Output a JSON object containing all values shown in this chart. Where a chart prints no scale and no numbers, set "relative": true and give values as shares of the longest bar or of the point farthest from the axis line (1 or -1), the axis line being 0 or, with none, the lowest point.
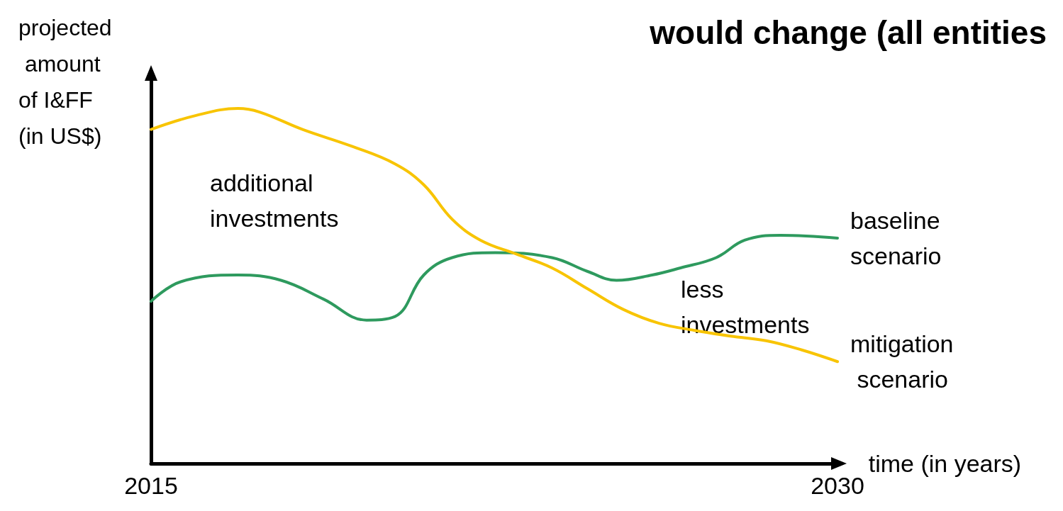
{
  "chart_data": {
    "type": "line",
    "title": "would change (all entities",
    "ylabel": "projected amount of I&FF (in US$)",
    "xlabel": "time (in years)",
    "relative": true,
    "xlim": [
      2015,
      2030
    ],
    "xticks": [
      2015,
      2030
    ],
    "grid": false,
    "legend": false,
    "marker": "none",
    "line_style": "solid",
    "annotations": [
      "additional investments",
      "less investments"
    ],
    "series": [
      {
        "name": "baseline scenario",
        "color": "#2e9a5e",
        "x": [
          2015,
          2015.65,
          2016.9,
          2017.84,
          2018.77,
          2019.71,
          2020.33,
          2020.96,
          2021.58,
          2022.52,
          2023.76,
          2024.54,
          2025.17,
          2025.95,
          2026.57,
          2027.35,
          2027.97,
          2028.75,
          2030
        ],
        "values": [
          0.457,
          0.512,
          0.531,
          0.516,
          0.463,
          0.404,
          0.414,
          0.531,
          0.58,
          0.594,
          0.58,
          0.541,
          0.516,
          0.531,
          0.551,
          0.58,
          0.629,
          0.643,
          0.635
        ]
      },
      {
        "name": "mitigation scenario",
        "color": "#f8c400",
        "x": [
          2015,
          2015.97,
          2016.9,
          2017.37,
          2018.31,
          2019.4,
          2020.33,
          2020.96,
          2021.58,
          2022.2,
          2022.98,
          2023.76,
          2024.54,
          2025.32,
          2026.1,
          2026.88,
          2027.66,
          2028.44,
          2029.22,
          2030
        ],
        "values": [
          0.941,
          0.98,
          1,
          0.99,
          0.941,
          0.893,
          0.844,
          0.785,
          0.688,
          0.629,
          0.59,
          0.551,
          0.492,
          0.434,
          0.395,
          0.375,
          0.359,
          0.346,
          0.32,
          0.287
        ]
      }
    ]
  }
}
